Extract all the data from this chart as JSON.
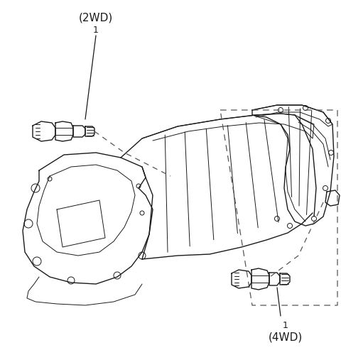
{
  "background_color": "#ffffff",
  "line_color": "#1a1a1a",
  "dash_color": "#555555",
  "fig_width": 4.8,
  "fig_height": 5.0,
  "dpi": 100,
  "label_2wd": "(2WD)",
  "label_4wd": "(4WD)",
  "label_num": "1",
  "font_size_label": 10,
  "font_size_num": 9
}
